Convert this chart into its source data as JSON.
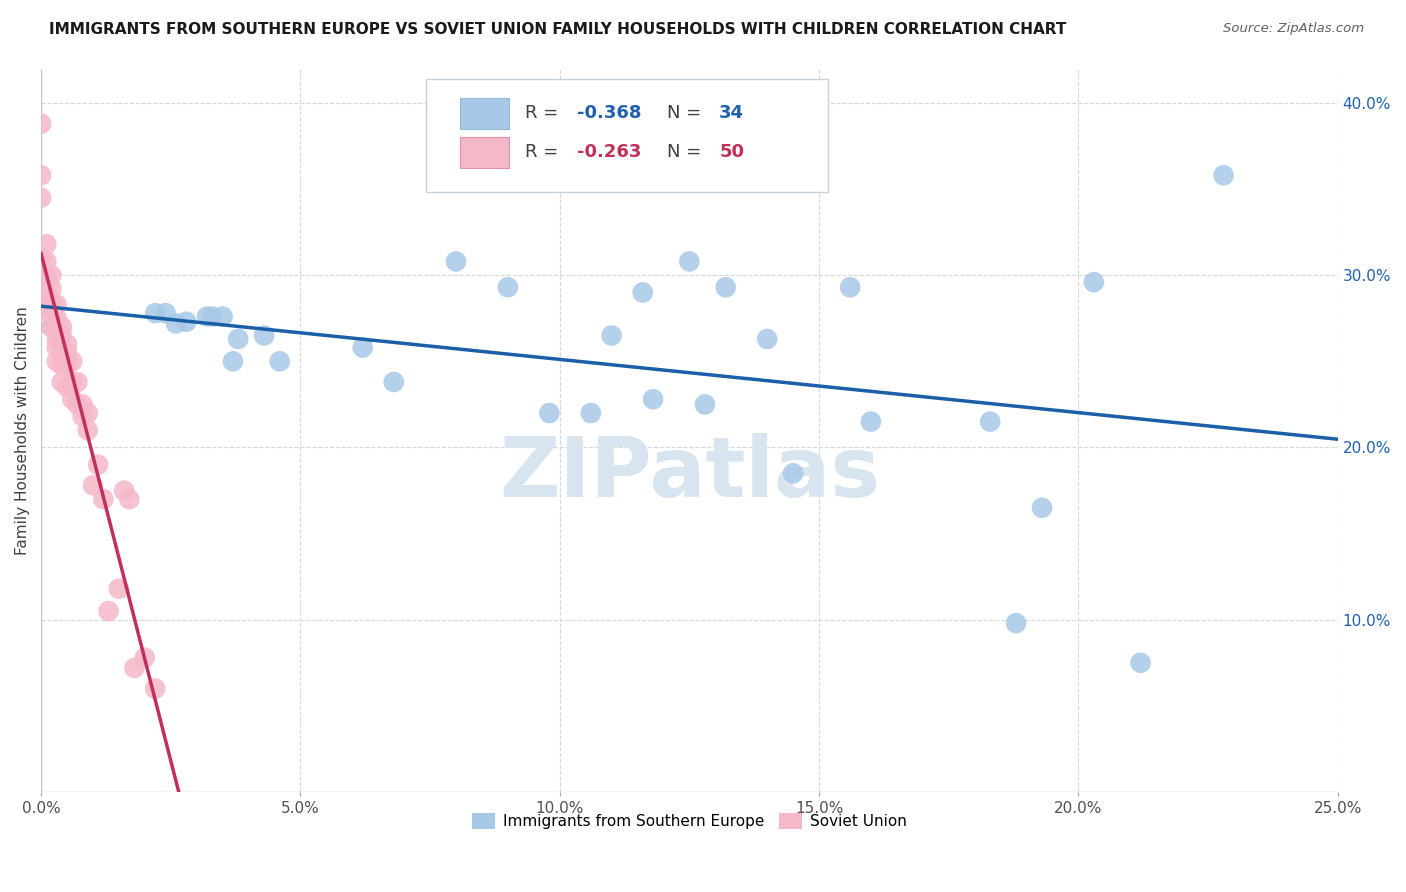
{
  "title": "IMMIGRANTS FROM SOUTHERN EUROPE VS SOVIET UNION FAMILY HOUSEHOLDS WITH CHILDREN CORRELATION CHART",
  "source": "Source: ZipAtlas.com",
  "ylabel": "Family Households with Children",
  "xlim": [
    0.0,
    0.25
  ],
  "ylim": [
    0.0,
    0.42
  ],
  "xticks": [
    0.0,
    0.05,
    0.1,
    0.15,
    0.2,
    0.25
  ],
  "yticks": [
    0.1,
    0.2,
    0.3,
    0.4
  ],
  "ytick_labels": [
    "10.0%",
    "20.0%",
    "30.0%",
    "40.0%"
  ],
  "xtick_labels": [
    "0.0%",
    "5.0%",
    "10.0%",
    "15.0%",
    "20.0%",
    "25.0%"
  ],
  "blue_R": "-0.368",
  "blue_N": "34",
  "pink_R": "-0.263",
  "pink_N": "50",
  "blue_color": "#a8c8e8",
  "blue_line_color": "#1a5fa8",
  "pink_color": "#f5b8c8",
  "pink_line_color": "#c0305a",
  "blue_scatter_x": [
    0.002,
    0.022,
    0.024,
    0.026,
    0.028,
    0.032,
    0.033,
    0.035,
    0.037,
    0.038,
    0.043,
    0.046,
    0.062,
    0.068,
    0.08,
    0.09,
    0.098,
    0.106,
    0.11,
    0.116,
    0.118,
    0.125,
    0.128,
    0.132,
    0.14,
    0.145,
    0.156,
    0.16,
    0.183,
    0.188,
    0.193,
    0.203,
    0.212,
    0.228
  ],
  "blue_scatter_y": [
    0.27,
    0.278,
    0.278,
    0.272,
    0.273,
    0.276,
    0.276,
    0.276,
    0.25,
    0.263,
    0.265,
    0.25,
    0.258,
    0.238,
    0.308,
    0.293,
    0.22,
    0.22,
    0.265,
    0.29,
    0.228,
    0.308,
    0.225,
    0.293,
    0.263,
    0.185,
    0.293,
    0.215,
    0.215,
    0.098,
    0.165,
    0.296,
    0.075,
    0.358
  ],
  "pink_scatter_x": [
    0.0,
    0.0,
    0.0,
    0.0,
    0.0,
    0.001,
    0.001,
    0.001,
    0.001,
    0.001,
    0.001,
    0.002,
    0.002,
    0.002,
    0.002,
    0.002,
    0.003,
    0.003,
    0.003,
    0.003,
    0.003,
    0.003,
    0.004,
    0.004,
    0.004,
    0.004,
    0.004,
    0.005,
    0.005,
    0.005,
    0.005,
    0.006,
    0.006,
    0.006,
    0.007,
    0.007,
    0.008,
    0.008,
    0.009,
    0.009,
    0.01,
    0.011,
    0.012,
    0.013,
    0.015,
    0.016,
    0.017,
    0.018,
    0.02,
    0.022
  ],
  "pink_scatter_y": [
    0.388,
    0.358,
    0.345,
    0.31,
    0.302,
    0.318,
    0.308,
    0.3,
    0.298,
    0.29,
    0.28,
    0.3,
    0.292,
    0.285,
    0.278,
    0.27,
    0.283,
    0.275,
    0.27,
    0.263,
    0.258,
    0.25,
    0.27,
    0.265,
    0.258,
    0.248,
    0.238,
    0.26,
    0.255,
    0.248,
    0.235,
    0.25,
    0.238,
    0.228,
    0.238,
    0.225,
    0.225,
    0.218,
    0.22,
    0.21,
    0.178,
    0.19,
    0.17,
    0.105,
    0.118,
    0.175,
    0.17,
    0.072,
    0.078,
    0.06
  ],
  "pink_line_x_start": 0.0,
  "pink_line_x_solid_end": 0.065,
  "pink_line_x_dash_end": 0.22,
  "watermark": "ZIPatlas",
  "watermark_color": "#d8e4f0",
  "background_color": "#ffffff",
  "grid_color": "#d4d8dc"
}
